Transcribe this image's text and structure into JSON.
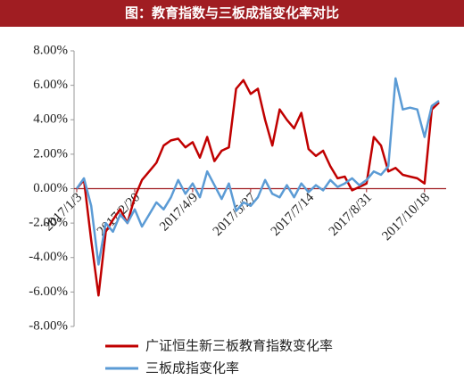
{
  "chart_data": {
    "type": "line",
    "title": "图：教育指数与三板成指变化率对比",
    "categories": [
      "2017/1/3",
      null,
      null,
      null,
      null,
      null,
      null,
      null,
      "2017/2/20",
      null,
      null,
      null,
      null,
      null,
      null,
      null,
      "2017/4/9",
      null,
      null,
      null,
      null,
      null,
      null,
      null,
      "2017/5/27",
      null,
      null,
      null,
      null,
      null,
      null,
      null,
      "2017/7/14",
      null,
      null,
      null,
      null,
      null,
      null,
      null,
      "2017/8/31",
      null,
      null,
      null,
      null,
      null,
      null,
      null,
      "2017/10/18",
      null,
      null
    ],
    "series": [
      {
        "name": "广证恒生新三板教育指数变化率",
        "color": "#c00000",
        "values": [
          0,
          0.5,
          -3,
          -6.2,
          -2.5,
          -1.8,
          -1.2,
          -2,
          -0.5,
          0.5,
          1,
          1.5,
          2.5,
          2.8,
          2.9,
          2.4,
          2.7,
          1.8,
          3.0,
          1.6,
          2.2,
          2.4,
          5.8,
          6.3,
          5.5,
          5.8,
          4.0,
          2.5,
          4.6,
          4.0,
          3.5,
          4.4,
          2.3,
          1.9,
          2.2,
          1.3,
          0.6,
          0.7,
          -0.1,
          0.1,
          0.3,
          3.0,
          2.5,
          1.0,
          1.2,
          0.8,
          0.7,
          0.6,
          0.3,
          4.6,
          5.0
        ]
      },
      {
        "name": "三板成指变化率",
        "color": "#5b9bd5",
        "values": [
          0,
          0.6,
          -1,
          -4.4,
          -2,
          -2.5,
          -1.5,
          -2,
          -1.2,
          -2.2,
          -1.5,
          -0.8,
          -1.2,
          -0.5,
          0.5,
          -0.3,
          0.3,
          -0.5,
          1.0,
          0.2,
          -0.6,
          0.3,
          -1.3,
          -0.8,
          -1.0,
          -0.5,
          0.5,
          -0.3,
          -0.5,
          0.2,
          -0.5,
          0.3,
          -0.2,
          0.2,
          -0.1,
          0.5,
          0.1,
          0.3,
          0.6,
          0.2,
          0.5,
          1.0,
          0.8,
          1.3,
          6.4,
          4.6,
          4.7,
          4.6,
          3.0,
          4.8,
          5.1
        ]
      }
    ],
    "ylim": [
      -8,
      8
    ],
    "yticks": [
      {
        "value": -8,
        "label": "-8.00%"
      },
      {
        "value": -6,
        "label": "-6.00%"
      },
      {
        "value": -4,
        "label": "-4.00%"
      },
      {
        "value": -2,
        "label": "-2.00%"
      },
      {
        "value": 0,
        "label": "0.00%"
      },
      {
        "value": 2,
        "label": "2.00%"
      },
      {
        "value": 4,
        "label": "4.00%"
      },
      {
        "value": 6,
        "label": "6.00%"
      },
      {
        "value": 8,
        "label": "8.00%"
      }
    ]
  }
}
